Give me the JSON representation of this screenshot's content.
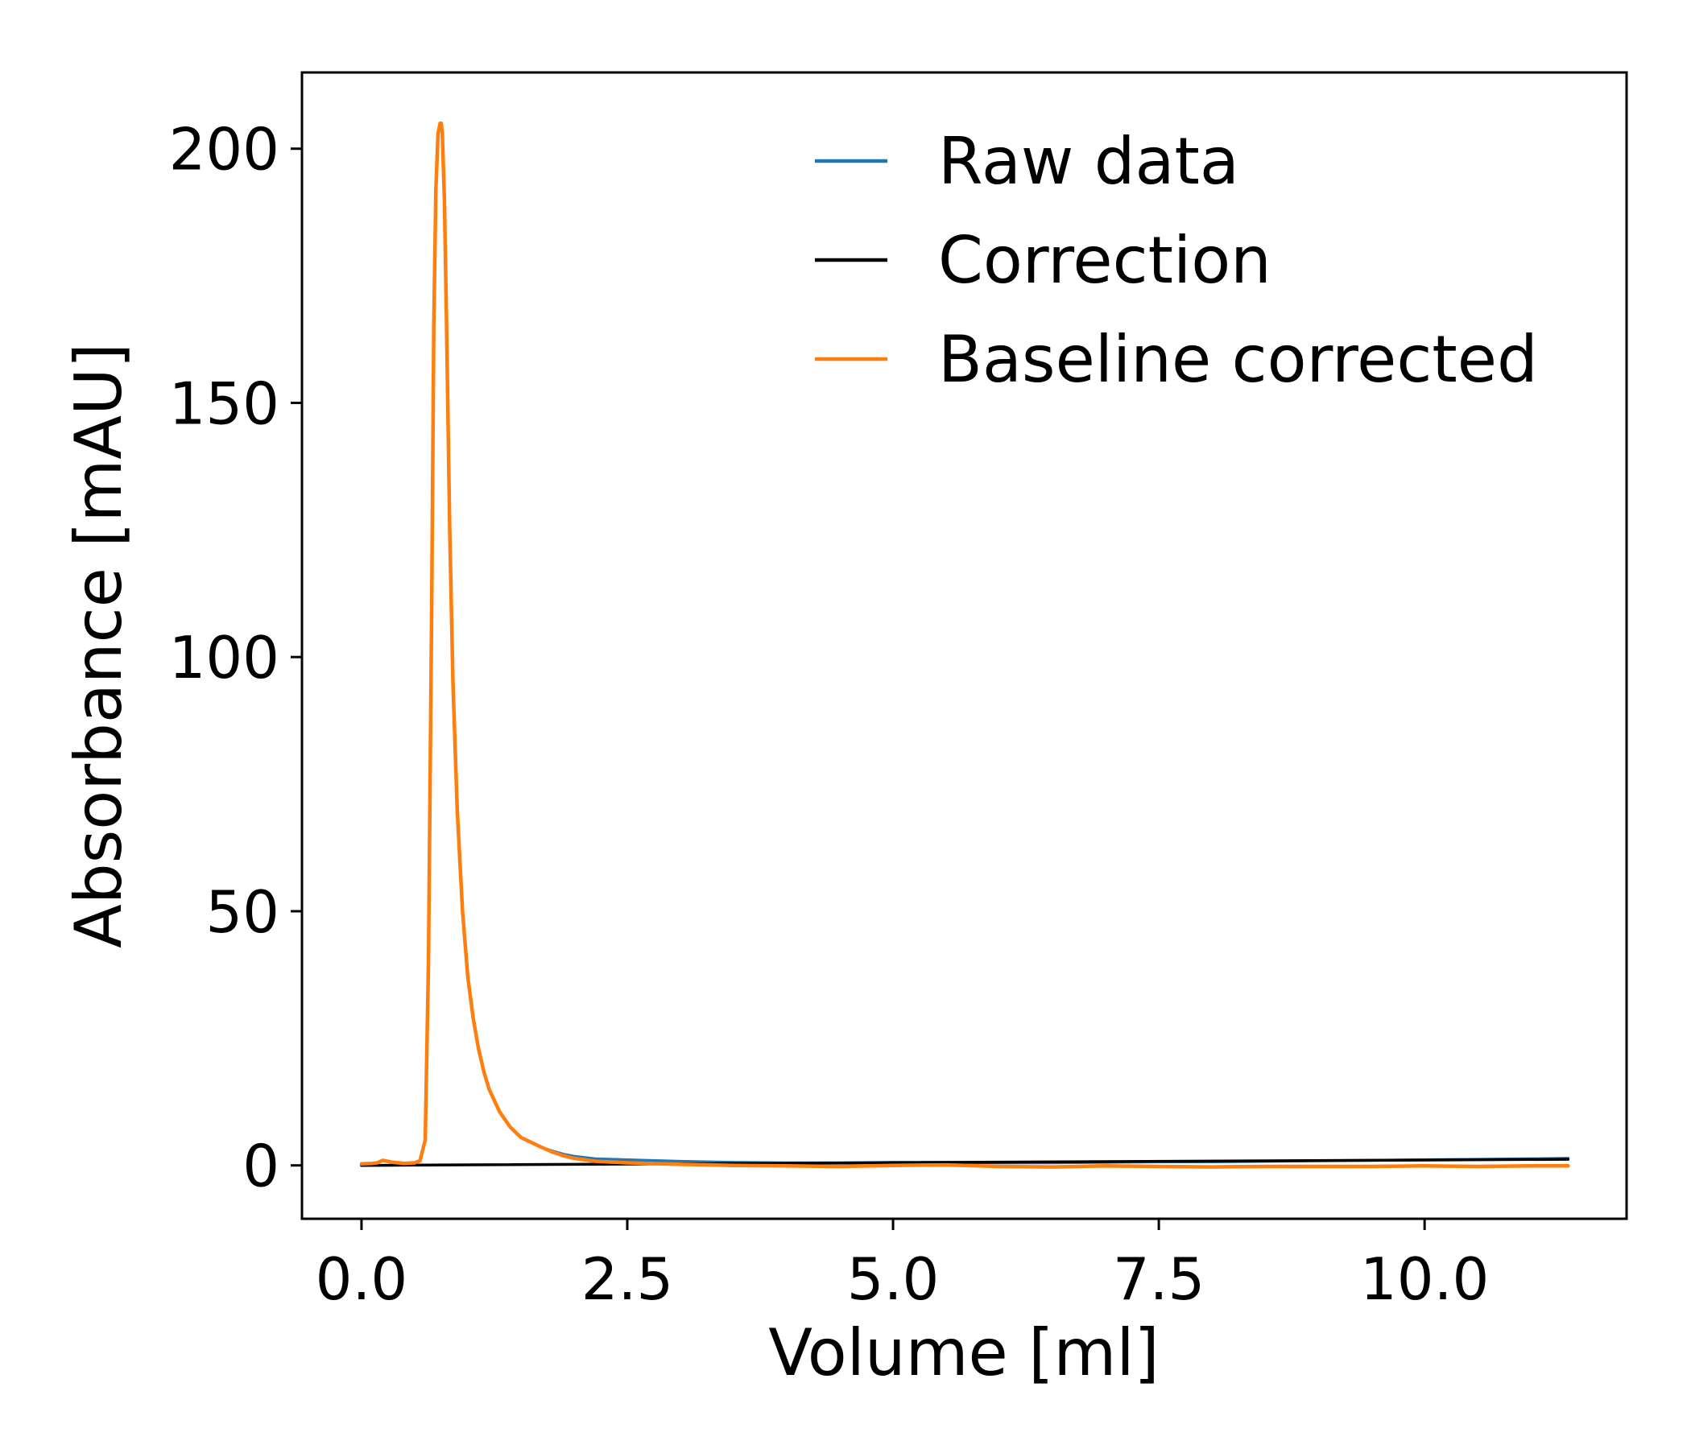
{
  "chart_data": {
    "type": "line",
    "title": "",
    "xlabel": "Volume [ml]",
    "ylabel": "Absorbance [mAU]",
    "xlim": [
      -0.56,
      11.9
    ],
    "ylim": [
      -10.5,
      215
    ],
    "xticks": [
      0.0,
      2.5,
      5.0,
      7.5,
      10.0
    ],
    "xtick_labels": [
      "0.0",
      "2.5",
      "5.0",
      "7.5",
      "10.0"
    ],
    "yticks": [
      0,
      50,
      100,
      150,
      200
    ],
    "ytick_labels": [
      "0",
      "50",
      "100",
      "150",
      "200"
    ],
    "grid": false,
    "legend_position": "top-right",
    "series": [
      {
        "name": "Raw data",
        "color": "#1f77b4",
        "x": [
          0.0,
          0.1,
          0.15,
          0.2,
          0.3,
          0.4,
          0.5,
          0.55,
          0.6,
          0.63,
          0.66,
          0.68,
          0.7,
          0.72,
          0.74,
          0.75,
          0.76,
          0.78,
          0.8,
          0.83,
          0.86,
          0.9,
          0.95,
          1.0,
          1.05,
          1.1,
          1.15,
          1.2,
          1.3,
          1.4,
          1.5,
          1.6,
          1.7,
          1.8,
          1.9,
          2.0,
          2.2,
          2.5,
          3.0,
          3.5,
          4.0,
          4.5,
          5.0,
          5.5,
          6.0,
          6.5,
          7.0,
          7.5,
          8.0,
          8.5,
          9.0,
          9.5,
          10.0,
          10.5,
          11.0,
          11.35
        ],
        "y": [
          0.3,
          0.4,
          0.5,
          1.0,
          0.6,
          0.4,
          0.5,
          0.9,
          5.0,
          40.0,
          110.0,
          165.0,
          192.0,
          203.0,
          205.0,
          205.0,
          203.0,
          190.0,
          165.0,
          125.0,
          95.0,
          70.0,
          50.0,
          37.0,
          29.0,
          23.0,
          18.5,
          15.0,
          10.5,
          7.5,
          5.5,
          4.5,
          3.5,
          2.8,
          2.2,
          1.8,
          1.3,
          1.1,
          0.8,
          0.6,
          0.5,
          0.5,
          0.6,
          0.6,
          0.5,
          0.5,
          0.6,
          0.7,
          0.7,
          0.8,
          0.9,
          1.0,
          1.1,
          1.2,
          1.3,
          1.4
        ]
      },
      {
        "name": "Correction",
        "color": "#000000",
        "x": [
          0.0,
          11.35
        ],
        "y": [
          0.0,
          1.2
        ]
      },
      {
        "name": "Baseline corrected",
        "color": "#ff7f0e",
        "x": [
          0.0,
          0.1,
          0.15,
          0.2,
          0.3,
          0.4,
          0.5,
          0.55,
          0.6,
          0.63,
          0.66,
          0.68,
          0.7,
          0.72,
          0.74,
          0.75,
          0.76,
          0.78,
          0.8,
          0.83,
          0.86,
          0.9,
          0.95,
          1.0,
          1.05,
          1.1,
          1.15,
          1.2,
          1.3,
          1.4,
          1.5,
          1.6,
          1.7,
          1.8,
          1.9,
          2.0,
          2.2,
          2.5,
          3.0,
          3.5,
          4.0,
          4.5,
          5.0,
          5.5,
          6.0,
          6.5,
          7.0,
          7.5,
          8.0,
          8.5,
          9.0,
          9.5,
          10.0,
          10.5,
          11.0,
          11.35
        ],
        "y": [
          0.3,
          0.4,
          0.5,
          1.0,
          0.6,
          0.4,
          0.5,
          0.9,
          5.0,
          40.0,
          110.0,
          165.0,
          192.0,
          203.0,
          205.0,
          205.0,
          203.0,
          190.0,
          165.0,
          125.0,
          95.0,
          70.0,
          50.0,
          37.0,
          29.0,
          23.0,
          18.5,
          15.0,
          10.5,
          7.5,
          5.5,
          4.5,
          3.5,
          2.6,
          1.9,
          1.4,
          0.8,
          0.5,
          0.2,
          0.0,
          -0.1,
          -0.2,
          0.0,
          0.1,
          -0.2,
          -0.3,
          -0.1,
          -0.2,
          -0.3,
          -0.2,
          -0.2,
          -0.2,
          -0.1,
          -0.2,
          -0.1,
          -0.1
        ]
      }
    ]
  }
}
